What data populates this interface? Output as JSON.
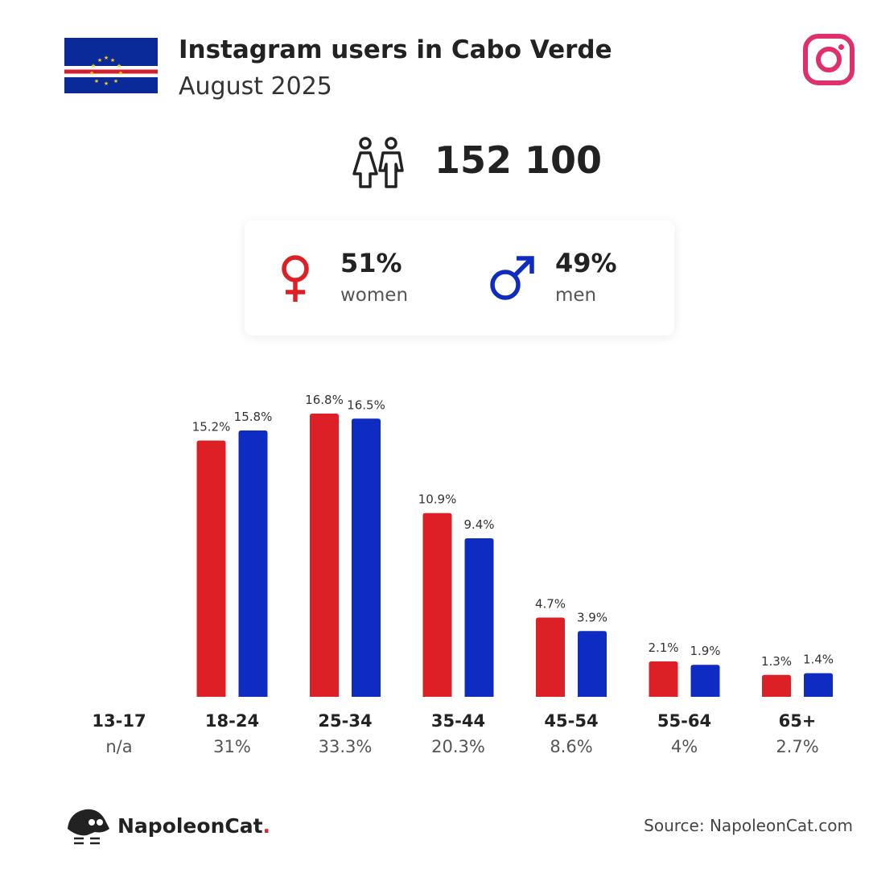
{
  "header": {
    "title": "Instagram users in Cabo Verde",
    "subtitle": "August 2025"
  },
  "total_users": "152 100",
  "gender": {
    "women": {
      "pct": "51%",
      "label": "women",
      "color": "#dd1f26"
    },
    "men": {
      "pct": "49%",
      "label": "men",
      "color": "#0f2cc2"
    }
  },
  "icons": [
    "cabo-verde-flag",
    "instagram-icon",
    "people-icon",
    "female-icon",
    "male-icon",
    "napoleoncat-logo"
  ],
  "chart_data": {
    "type": "bar",
    "categories": [
      "13-17",
      "18-24",
      "25-34",
      "35-44",
      "45-54",
      "55-64",
      "65+"
    ],
    "category_totals": [
      "n/a",
      "31%",
      "33.3%",
      "20.3%",
      "8.6%",
      "4%",
      "2.7%"
    ],
    "series": [
      {
        "name": "women",
        "color": "#dd1f26",
        "values": [
          null,
          15.2,
          16.8,
          10.9,
          4.7,
          2.1,
          1.3
        ],
        "labels": [
          "",
          "15.2%",
          "16.8%",
          "10.9%",
          "4.7%",
          "2.1%",
          "1.3%"
        ]
      },
      {
        "name": "men",
        "color": "#0f2cc2",
        "values": [
          null,
          15.8,
          16.5,
          9.4,
          3.9,
          1.9,
          1.4
        ],
        "labels": [
          "",
          "15.8%",
          "16.5%",
          "9.4%",
          "3.9%",
          "1.9%",
          "1.4%"
        ]
      }
    ],
    "ylim": [
      0,
      16.8
    ],
    "grid": false
  },
  "footer": {
    "brand": "NapoleonCat",
    "brand_dot": ".",
    "source": "Source: NapoleonCat.com"
  }
}
